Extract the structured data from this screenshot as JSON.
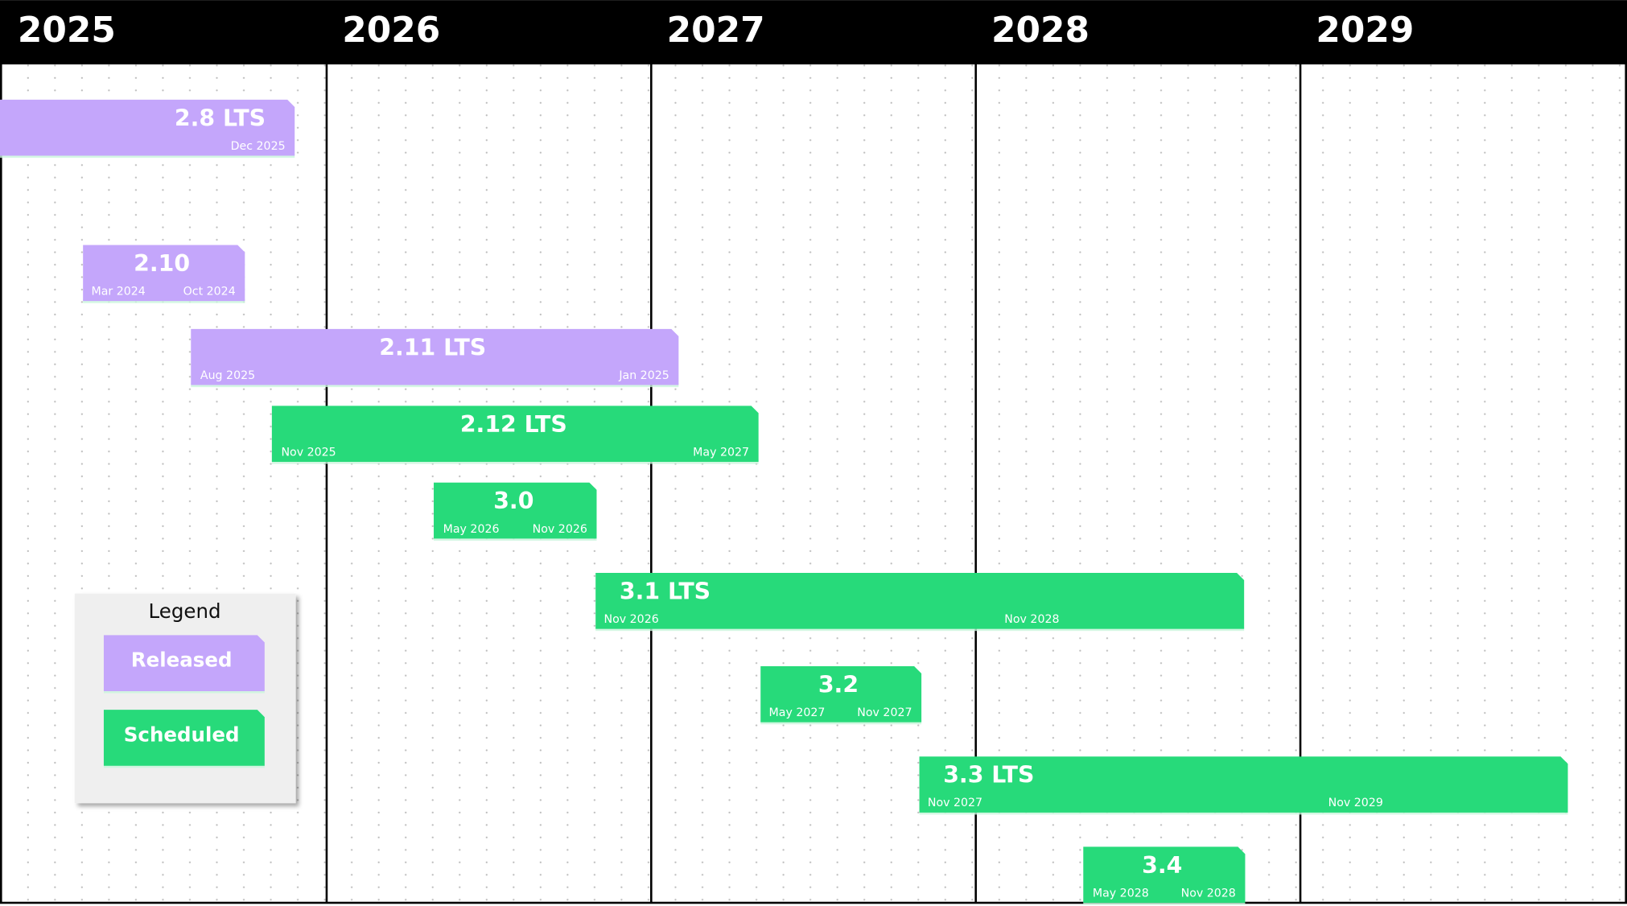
{
  "header": {
    "years": [
      "2025",
      "2026",
      "2027",
      "2028",
      "2029"
    ]
  },
  "releases": [
    {
      "label": "2.8 LTS",
      "dates": [
        "Dec 2025"
      ],
      "color": "#c4a6fb"
    },
    {
      "label": "2.10",
      "dates": [
        "Mar 2024",
        "Oct 2024"
      ],
      "color": "#c4a6fb"
    },
    {
      "label": "2.11 LTS",
      "dates": [
        "Aug 2025",
        "Jan 2025"
      ],
      "color": "#c4a6fb"
    },
    {
      "label": "2.12 LTS",
      "dates": [
        "Nov 2025",
        "May 2027"
      ],
      "color": "#27da7a"
    },
    {
      "label": "3.0",
      "dates": [
        "May 2026",
        "Nov 2026"
      ],
      "color": "#27da7a"
    },
    {
      "label": "3.1 LTS",
      "dates": [
        "Nov 2026",
        "Nov 2028"
      ],
      "color": "#27da7a"
    },
    {
      "label": "3.2",
      "dates": [
        "May 2027",
        "Nov 2027"
      ],
      "color": "#27da7a"
    },
    {
      "label": "3.3 LTS",
      "dates": [
        "Nov 2027",
        "Nov 2029"
      ],
      "color": "#27da7a"
    },
    {
      "label": "3.4",
      "dates": [
        "May 2028",
        "Nov 2028"
      ],
      "color": "#27da7a"
    }
  ],
  "legend": {
    "title": "Legend",
    "items": [
      {
        "label": "Released",
        "color": "#c4a6fb"
      },
      {
        "label": "Scheduled",
        "color": "#27da7a"
      }
    ]
  }
}
